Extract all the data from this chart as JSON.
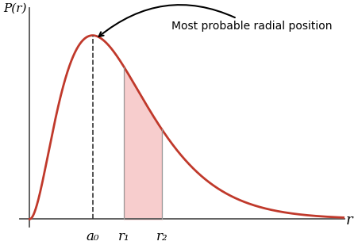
{
  "title": "",
  "xlabel": "r",
  "ylabel": "P(r)",
  "curve_color": "#c0392b",
  "curve_linewidth": 2.0,
  "shade_color": "#f5b8b8",
  "shade_alpha": 0.7,
  "dashed_color": "#333333",
  "annotation_text": "Most probable radial position",
  "a0": 2.0,
  "r1": 3.0,
  "r2": 4.2,
  "x_max": 10.0,
  "y_max": 1.15,
  "background_color": "#ffffff",
  "label_a0": "a₀",
  "label_r1": "r₁",
  "label_r2": "r₂",
  "label_fontsize": 12,
  "annot_fontsize": 10
}
